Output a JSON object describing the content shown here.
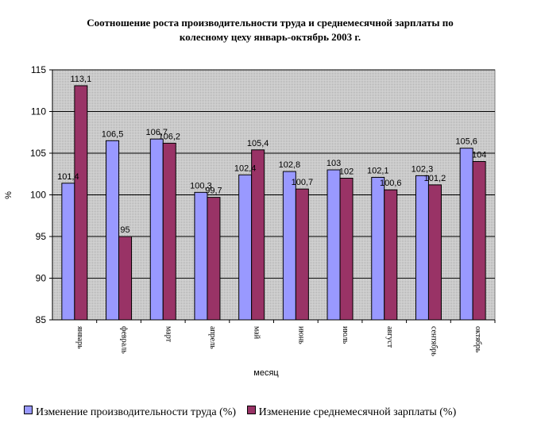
{
  "chart_data": {
    "type": "bar",
    "title_lines": [
      "Соотношение роста производительности труда и среднемесячной зарплаты по",
      "колесному цеху январь-октябрь 2003 г."
    ],
    "xlabel": "месяц",
    "ylabel": "%",
    "ylim": [
      85,
      115
    ],
    "yticks": [
      "85",
      "90",
      "95",
      "100",
      "105",
      "110",
      "115"
    ],
    "grid": true,
    "legend_position": "bottom",
    "categories": [
      "январь",
      "февраль",
      "март",
      "апрель",
      "май",
      "июнь",
      "июль",
      "август",
      "сентябрь",
      "октябрь"
    ],
    "series": [
      {
        "name": "Изменение производительности труда (%)",
        "color": "#9999FF",
        "values": [
          101.4,
          106.5,
          106.7,
          100.3,
          102.4,
          102.8,
          103,
          102.1,
          102.3,
          105.6
        ],
        "labels": [
          "101,4",
          "106,5",
          "106,7",
          "100,3",
          "102,4",
          "102,8",
          "103",
          "102,1",
          "102,3",
          "105,6"
        ]
      },
      {
        "name": "Изменение среднемесячной зарплаты (%)",
        "color": "#993366",
        "values": [
          113.1,
          95,
          106.2,
          99.7,
          105.4,
          100.7,
          102,
          100.6,
          101.2,
          104
        ],
        "labels": [
          "113,1",
          "95",
          "106,2",
          "99,7",
          "105,4",
          "100,7",
          "102",
          "100,6",
          "101,2",
          "104"
        ]
      }
    ]
  }
}
